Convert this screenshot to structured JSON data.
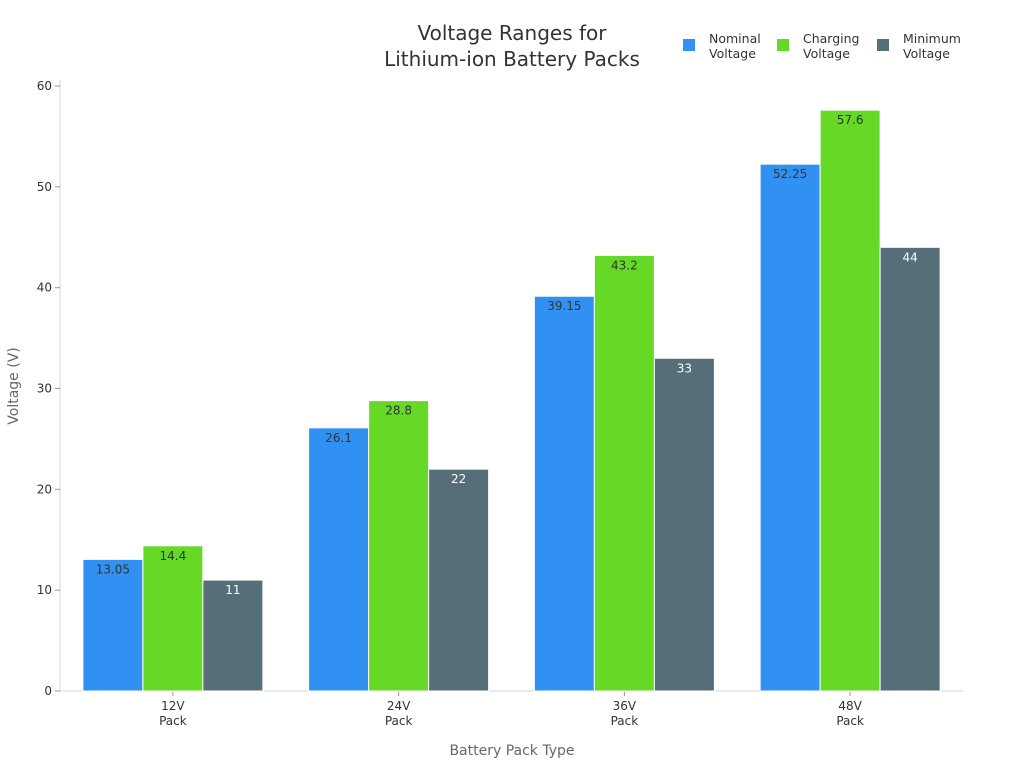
{
  "chart_data": {
    "type": "bar",
    "title": [
      "Voltage Ranges for",
      "Lithium-ion Battery Packs"
    ],
    "categories": [
      [
        "12V",
        "Pack"
      ],
      [
        "24V",
        "Pack"
      ],
      [
        "36V",
        "Pack"
      ],
      [
        "48V",
        "Pack"
      ]
    ],
    "series": [
      {
        "name": [
          "Nominal",
          "Voltage"
        ],
        "color": "#3091f2",
        "values": [
          13.05,
          26.1,
          39.15,
          52.25
        ],
        "labels": [
          "13.05",
          "26.1",
          "39.15",
          "52.25"
        ]
      },
      {
        "name": [
          "Charging",
          "Voltage"
        ],
        "color": "#66d926",
        "values": [
          14.4,
          28.8,
          43.2,
          57.6
        ],
        "labels": [
          "14.4",
          "28.8",
          "43.2",
          "57.6"
        ]
      },
      {
        "name": [
          "Minimum",
          "Voltage"
        ],
        "color": "#556e78",
        "values": [
          11,
          22,
          33,
          44
        ],
        "labels": [
          "11",
          "22",
          "33",
          "44"
        ]
      }
    ],
    "xlabel": "Battery Pack Type",
    "ylabel": "Voltage (V)",
    "ylim": [
      0,
      60
    ],
    "yticks": [
      0,
      10,
      20,
      30,
      40,
      50,
      60
    ],
    "grid": false,
    "legend_position": "top-right"
  }
}
